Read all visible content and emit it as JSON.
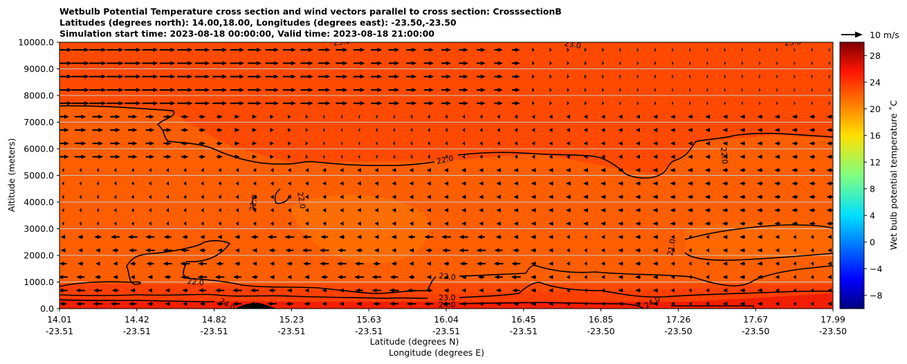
{
  "chart_data": {
    "type": "heatmap",
    "title_lines": [
      "Wetbulb Potential Temperature cross section and wind vectors parallel to cross section: CrosssectionB",
      "Latitudes (degrees north): 14.00,18.00, Longitudes (degrees east): -23.50,-23.50",
      "Simulation start time: 2023-08-18 00:00:00, Valid time: 2023-08-18 21:00:00"
    ],
    "ylabel": "Altitude (meters)",
    "xlabel_lines": [
      "Latitude (degrees N)",
      "Longitude (degrees E)"
    ],
    "ylim": [
      0,
      10000
    ],
    "y_ticks": [
      "0.0",
      "1000.0",
      "2000.0",
      "3000.0",
      "4000.0",
      "5000.0",
      "6000.0",
      "7000.0",
      "8000.0",
      "9000.0",
      "10000.0"
    ],
    "x_ticks_lat": [
      "14.01",
      "14.42",
      "14.82",
      "15.23",
      "15.63",
      "16.04",
      "16.45",
      "16.85",
      "17.26",
      "17.67",
      "17.99"
    ],
    "x_ticks_lon": [
      "-23.51",
      "-23.51",
      "-23.51",
      "-23.51",
      "-23.51",
      "-23.51",
      "-23.51",
      "-23.50",
      "-23.50",
      "-23.50",
      "-23.50"
    ],
    "grid": "horizontal",
    "colorbar": {
      "label": "Wet bulb potential temperature ˚C",
      "range": [
        -10,
        30
      ],
      "ticks": [
        "−8",
        "−4",
        "0",
        "4",
        "8",
        "12",
        "16",
        "20",
        "24",
        "28"
      ],
      "tick_values": [
        -8,
        -4,
        0,
        4,
        8,
        12,
        16,
        20,
        24,
        28
      ],
      "colormap": "jet"
    },
    "quiver_key": {
      "label": "10 m/s"
    },
    "contour_labels": [
      "23.0",
      "23.0",
      "23.0",
      "22.0",
      "22.0",
      "22.0",
      "22.0",
      "22.0",
      "21.0",
      "22.0",
      "23.0",
      "24.0",
      "24.0",
      "24.0"
    ],
    "field_summary": {
      "surface_layer_value": 24.5,
      "lower_layer_value": 23.2,
      "mid_layer_value": 22.0,
      "upper_layer_value": 23.0
    }
  }
}
